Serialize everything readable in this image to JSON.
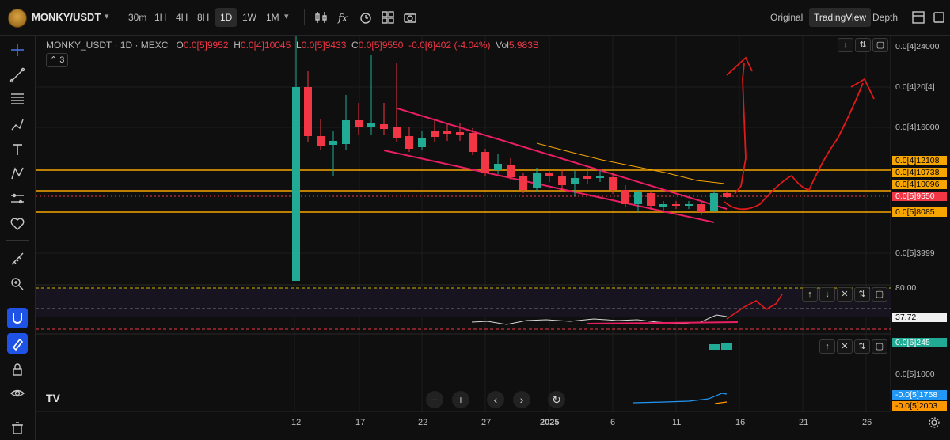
{
  "header": {
    "symbol": "MONKY/USDT",
    "timeframes": [
      "30m",
      "1H",
      "4H",
      "8H",
      "1D",
      "1W",
      "1M"
    ],
    "active_timeframe": "1D",
    "views": [
      "Original",
      "TradingView",
      "Depth"
    ],
    "active_view": "TradingView"
  },
  "legend": {
    "title": "MONKY_USDT · 1D · MEXC",
    "o_label": "O",
    "o_value": "0.0[5]9952",
    "h_label": "H",
    "h_value": "0.0[4]10045",
    "l_label": "L",
    "l_value": "0.0[5]9433",
    "c_label": "C",
    "c_value": "0.0[5]9550",
    "change": "-0.0[6]402 (-4.04%)",
    "vol_label": "Vol",
    "vol_value": "5.983B",
    "collapsed_count": "3"
  },
  "price_axis": {
    "labels": [
      "0.0[4]24000",
      "0.0[4]20[4]",
      "0.0[4]16000",
      "0.0[5]3999"
    ],
    "boxes": [
      {
        "text": "0.0[4]12108",
        "kind": "orange"
      },
      {
        "text": "0.0[4]10738",
        "kind": "orange"
      },
      {
        "text": "0.0[4]10096",
        "kind": "orange"
      },
      {
        "text": "0.0[5]9550",
        "kind": "red"
      },
      {
        "text": "0.0[5]8085",
        "kind": "orange"
      }
    ]
  },
  "rsi_axis": {
    "top": "80.00",
    "value": "37.72"
  },
  "macd_axis": {
    "value": "0.0[6]245",
    "mid": "0.0[5]1000",
    "line1": "-0.0[5]1758",
    "line2": "-0.0[5]2003"
  },
  "time_axis": [
    "12",
    "17",
    "22",
    "27",
    "2025",
    "6",
    "11",
    "16",
    "21",
    "26"
  ],
  "colors": {
    "up": "#22ab94",
    "down": "#f23645",
    "support": "#f7a600",
    "channel": "#e91e63",
    "drawing": "#e01a1a",
    "current": "#f23645"
  },
  "icons": {
    "toolbar": [
      "indicators-icon",
      "fx-icon",
      "alert-icon",
      "layout-icon",
      "camera-icon"
    ],
    "view_tools": [
      "layout-window-icon",
      "fullscreen-icon"
    ],
    "left": [
      "crosshair-icon",
      "trendline-icon",
      "fib-icon",
      "brush-icon",
      "text-icon",
      "pattern-icon",
      "measure-icon",
      "heart-icon",
      "ruler-icon",
      "zoom-icon",
      "magnet-icon",
      "lock-drawing-icon",
      "lock-icon",
      "eye-icon",
      "trash-icon"
    ]
  }
}
